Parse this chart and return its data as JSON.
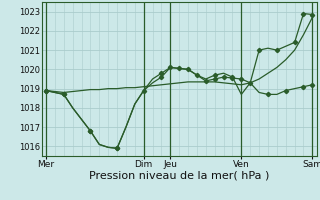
{
  "xlabel": "Pression niveau de la mer( hPa )",
  "background_color": "#cce8e8",
  "grid_color": "#aacccc",
  "line_color": "#2a5c2a",
  "ylim": [
    1015.5,
    1023.5
  ],
  "yticks": [
    1016,
    1017,
    1018,
    1019,
    1020,
    1021,
    1022,
    1023
  ],
  "x_day_labels": [
    "Mer",
    "Dim",
    "Jeu",
    "Ven",
    "Sam"
  ],
  "x_day_positions": [
    0,
    11,
    14,
    22,
    30
  ],
  "x_vlines": [
    0,
    11,
    14,
    22,
    30
  ],
  "series1_x": [
    0,
    1,
    2,
    3,
    4,
    5,
    6,
    7,
    8,
    9,
    10,
    11,
    12,
    13,
    14,
    15,
    16,
    17,
    18,
    19,
    20,
    21,
    22,
    23,
    24,
    25,
    26,
    27,
    28,
    29,
    30
  ],
  "series1_y": [
    1018.9,
    1018.85,
    1018.8,
    1018.85,
    1018.9,
    1018.95,
    1018.95,
    1019.0,
    1019.0,
    1019.05,
    1019.05,
    1019.1,
    1019.15,
    1019.2,
    1019.25,
    1019.3,
    1019.35,
    1019.35,
    1019.35,
    1019.35,
    1019.3,
    1019.25,
    1019.2,
    1019.3,
    1019.5,
    1019.8,
    1020.1,
    1020.5,
    1021.0,
    1021.8,
    1022.7
  ],
  "series2_x": [
    0,
    1,
    2,
    3,
    4,
    5,
    6,
    7,
    8,
    9,
    10,
    11,
    12,
    13,
    14,
    15,
    16,
    17,
    18,
    19,
    20,
    21,
    22,
    23,
    24,
    25,
    26,
    27,
    28,
    29,
    30
  ],
  "series2_y": [
    1018.9,
    1018.8,
    1018.7,
    1018.0,
    1017.4,
    1016.8,
    1016.1,
    1015.95,
    1015.9,
    1017.0,
    1018.2,
    1018.9,
    1019.3,
    1019.6,
    1020.1,
    1020.05,
    1020.0,
    1019.7,
    1019.4,
    1019.5,
    1019.6,
    1019.55,
    1019.5,
    1019.3,
    1018.8,
    1018.7,
    1018.7,
    1018.9,
    1019.0,
    1019.1,
    1019.2
  ],
  "series3_x": [
    0,
    1,
    2,
    3,
    4,
    5,
    6,
    7,
    8,
    9,
    10,
    11,
    12,
    13,
    14,
    15,
    16,
    17,
    18,
    19,
    20,
    21,
    22,
    23,
    24,
    25,
    26,
    27,
    28,
    29,
    30
  ],
  "series3_y": [
    1018.9,
    1018.8,
    1018.7,
    1018.0,
    1017.4,
    1016.8,
    1016.1,
    1015.95,
    1015.9,
    1017.0,
    1018.2,
    1018.9,
    1019.5,
    1019.8,
    1020.1,
    1020.05,
    1020.0,
    1019.7,
    1019.5,
    1019.7,
    1019.8,
    1019.6,
    1018.7,
    1019.3,
    1021.0,
    1021.1,
    1021.0,
    1021.2,
    1021.4,
    1022.9,
    1022.85
  ],
  "series2_markers_x": [
    0,
    2,
    5,
    8,
    11,
    13,
    14,
    16,
    18,
    19,
    20,
    21,
    22,
    25,
    27,
    29,
    30
  ],
  "series2_markers_y": [
    1018.9,
    1018.7,
    1016.8,
    1015.9,
    1018.9,
    1019.6,
    1020.1,
    1020.0,
    1019.4,
    1019.5,
    1019.6,
    1019.55,
    1019.5,
    1018.7,
    1018.9,
    1019.1,
    1019.2
  ],
  "series3_markers_x": [
    0,
    2,
    5,
    8,
    13,
    15,
    17,
    19,
    21,
    23,
    24,
    26,
    28,
    29,
    30
  ],
  "series3_markers_y": [
    1018.9,
    1018.7,
    1016.8,
    1015.9,
    1019.8,
    1020.05,
    1019.7,
    1019.7,
    1019.6,
    1019.3,
    1021.0,
    1021.0,
    1021.4,
    1022.9,
    1022.85
  ],
  "xlim": [
    -0.5,
    30.5
  ],
  "xlabel_fontsize": 8,
  "ytick_fontsize": 6,
  "xtick_fontsize": 6.5
}
